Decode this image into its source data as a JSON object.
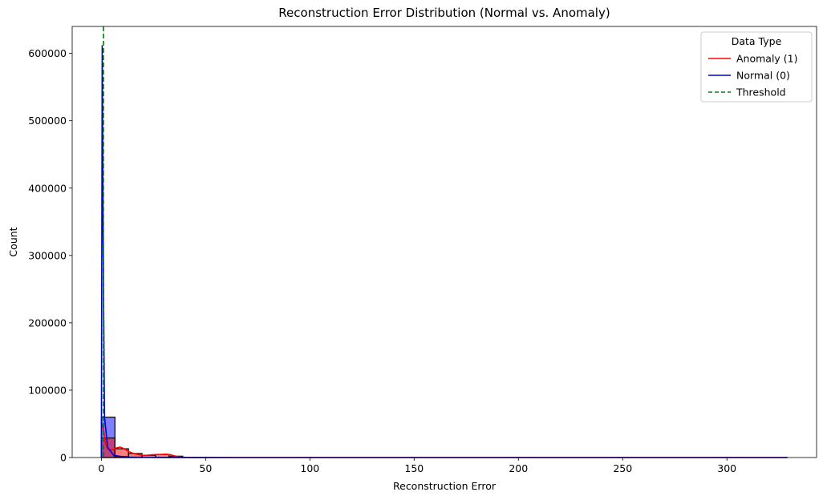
{
  "chart_data": {
    "type": "bar",
    "title": "Reconstruction Error Distribution (Normal vs. Anomaly)",
    "xlabel": "Reconstruction Error",
    "ylabel": "Count",
    "xlim": [
      -14,
      343
    ],
    "ylim": [
      0,
      640000
    ],
    "xticks": [
      0,
      50,
      100,
      150,
      200,
      250,
      300
    ],
    "yticks": [
      0,
      100000,
      200000,
      300000,
      400000,
      500000,
      600000
    ],
    "grid": false,
    "legend": {
      "title": "Data Type",
      "position": "top-right",
      "entries": [
        {
          "label": "Anomaly (1)",
          "color": "#ff0000",
          "style": "solid"
        },
        {
          "label": "Normal (0)",
          "color": "#0000cd",
          "style": "solid"
        },
        {
          "label": "Threshold",
          "color": "#008000",
          "style": "dashed"
        }
      ]
    },
    "bin_width": 6.5,
    "series": [
      {
        "name": "Normal (0)",
        "color": "#0000ff",
        "bins": [
          {
            "x0": 0,
            "x1": 6.5,
            "count": 60000
          },
          {
            "x0": 6.5,
            "x1": 13,
            "count": 1500
          },
          {
            "x0": 13,
            "x1": 19.5,
            "count": 600
          }
        ],
        "kde": [
          [
            0,
            0
          ],
          [
            0.4,
            612000
          ],
          [
            0.9,
            300000
          ],
          [
            1.5,
            60000
          ],
          [
            3,
            15000
          ],
          [
            6,
            3000
          ],
          [
            12,
            600
          ],
          [
            30,
            100
          ],
          [
            60,
            0
          ],
          [
            329,
            0
          ]
        ]
      },
      {
        "name": "Anomaly (1)",
        "color": "#ff0000",
        "bins": [
          {
            "x0": 0,
            "x1": 6.5,
            "count": 29000
          },
          {
            "x0": 6.5,
            "x1": 13,
            "count": 13000
          },
          {
            "x0": 13,
            "x1": 19.5,
            "count": 6000
          },
          {
            "x0": 19.5,
            "x1": 26,
            "count": 3200
          },
          {
            "x0": 26,
            "x1": 32.5,
            "count": 4500
          },
          {
            "x0": 32.5,
            "x1": 39,
            "count": 2000
          },
          {
            "x0": 39,
            "x1": 45.5,
            "count": 400
          }
        ],
        "kde": [
          [
            0,
            52000
          ],
          [
            1,
            42000
          ],
          [
            2,
            20000
          ],
          [
            3,
            13000
          ],
          [
            5,
            11000
          ],
          [
            7,
            14000
          ],
          [
            9,
            15500
          ],
          [
            11,
            13000
          ],
          [
            13,
            9000
          ],
          [
            15,
            6500
          ],
          [
            17,
            5000
          ],
          [
            19,
            3500
          ],
          [
            21,
            3200
          ],
          [
            23,
            3600
          ],
          [
            25,
            4200
          ],
          [
            27,
            4600
          ],
          [
            29,
            4700
          ],
          [
            31,
            5000
          ],
          [
            33,
            4200
          ],
          [
            35,
            2500
          ],
          [
            37,
            1200
          ],
          [
            40,
            400
          ],
          [
            45,
            100
          ],
          [
            60,
            0
          ],
          [
            329,
            0
          ]
        ]
      }
    ],
    "threshold": 1.0
  }
}
